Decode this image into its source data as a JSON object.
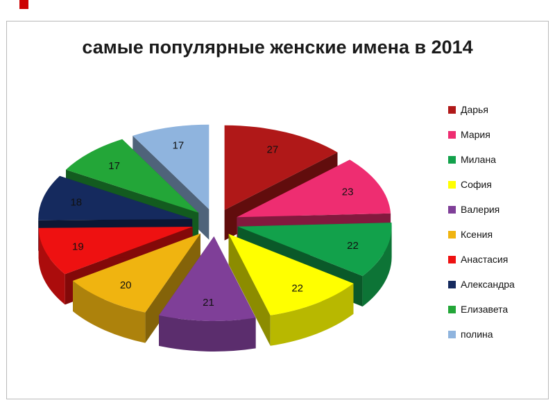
{
  "page": {
    "corner_mark_color": "#cc0000"
  },
  "chart_data": {
    "type": "pie",
    "effect": "3d-exploded",
    "title": "самые популярные женские имена в 2014",
    "legend_position": "right",
    "start_angle_deg": 0,
    "direction": "clockwise",
    "categories": [
      "Дарья",
      "Мария",
      "Милана",
      "София",
      "Валерия",
      "Ксения",
      "Анастасия",
      "Александра",
      "Елизавета",
      "полина"
    ],
    "values": [
      27,
      23,
      22,
      22,
      21,
      20,
      19,
      18,
      17,
      17
    ],
    "colors": [
      "#B01818",
      "#EE2D71",
      "#12A14B",
      "#FFFF00",
      "#7F3F98",
      "#F0B410",
      "#EE1111",
      "#152A5E",
      "#23A638",
      "#8FB4DE"
    ],
    "labels_shown": "values"
  }
}
